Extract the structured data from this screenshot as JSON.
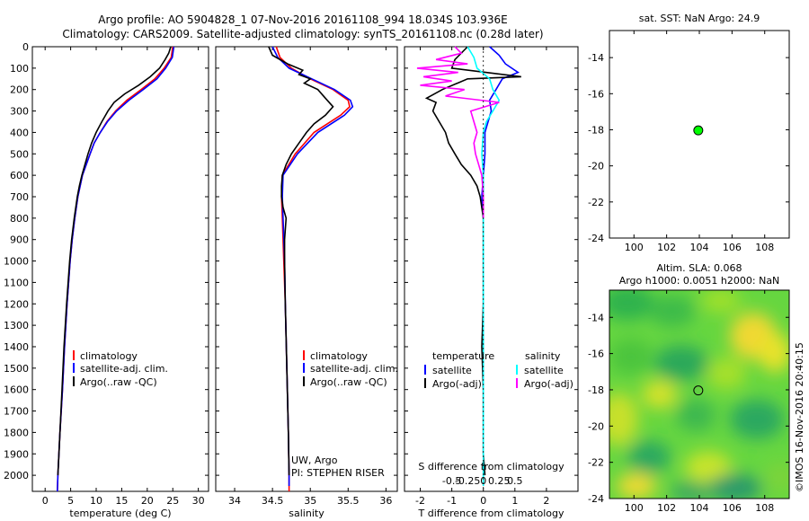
{
  "title": {
    "line1": "Argo profile: AO 5904828_1 07-Nov-2016 20161108_994 18.034S 103.936E",
    "line2": "Climatology: CARS2009. Satellite-adjusted climatology: synTS_20161108.nc (0.28d later)"
  },
  "side_label": "©IMOS 16-Nov-2016 20:40:15",
  "colors": {
    "climatology": "#ff0000",
    "satellite": "#0000ff",
    "argo": "#000000",
    "salinity_satellite": "#00ffff",
    "salinity_argo": "#ff00ff",
    "marker_green": "#00ff00"
  },
  "chart_data": [
    {
      "id": "temperature",
      "type": "line",
      "xlabel": "temperature (deg C)",
      "ylabel": "",
      "xlim": [
        -2.5,
        32
      ],
      "ylim": [
        2075,
        0
      ],
      "xticks": [
        0,
        5,
        10,
        15,
        20,
        25,
        30
      ],
      "xtick_labels": [
        "0",
        "5",
        "10",
        "15",
        "20",
        "25",
        "30"
      ],
      "yticks": [
        0,
        100,
        200,
        300,
        400,
        500,
        600,
        700,
        800,
        900,
        1000,
        1100,
        1200,
        1300,
        1400,
        1500,
        1600,
        1700,
        1800,
        1900,
        2000
      ],
      "ytick_labels": [
        "0",
        "100",
        "200",
        "300",
        "400",
        "500",
        "600",
        "700",
        "800",
        "900",
        "1000",
        "1100",
        "1200",
        "1300",
        "1400",
        "1500",
        "1600",
        "1700",
        "1800",
        "1900",
        "2000"
      ],
      "legend": [
        "climatology",
        "satellite-adj. clim.",
        "Argo(..raw -QC)"
      ],
      "legend_position": "lower-right",
      "series": [
        {
          "name": "climatology",
          "color": "#ff0000",
          "depth": [
            0,
            50,
            100,
            150,
            200,
            250,
            300,
            350,
            400,
            450,
            500,
            600,
            700,
            800,
            900,
            1000,
            1200,
            1400,
            1600,
            1800,
            2000,
            2075
          ],
          "values": [
            25.0,
            24.7,
            23.3,
            21.5,
            18.8,
            16.0,
            13.8,
            12.1,
            10.8,
            9.6,
            8.8,
            7.3,
            6.4,
            5.8,
            5.3,
            4.9,
            4.3,
            3.8,
            3.4,
            2.9,
            2.5,
            2.4
          ]
        },
        {
          "name": "satellite-adj. clim.",
          "color": "#0000ff",
          "depth": [
            0,
            50,
            100,
            150,
            200,
            250,
            300,
            350,
            400,
            450,
            500,
            600,
            700,
            800,
            900,
            1000,
            1200,
            1400,
            1600,
            1800,
            2000,
            2075
          ],
          "values": [
            25.2,
            24.9,
            23.6,
            21.9,
            19.2,
            16.4,
            14.0,
            12.2,
            10.8,
            9.6,
            8.8,
            7.3,
            6.4,
            5.8,
            5.3,
            4.9,
            4.3,
            3.8,
            3.4,
            2.9,
            2.5,
            2.4
          ]
        },
        {
          "name": "Argo(..raw -QC)",
          "color": "#000000",
          "depth": [
            0,
            30,
            60,
            100,
            140,
            180,
            220,
            260,
            300,
            350,
            400,
            450,
            500,
            550,
            600,
            650,
            700,
            800,
            900,
            1000,
            1200,
            1400,
            1600,
            1800,
            2000
          ],
          "values": [
            24.6,
            24.2,
            23.5,
            22.4,
            20.6,
            18.3,
            15.6,
            13.5,
            12.3,
            11.1,
            10.0,
            9.1,
            8.4,
            7.8,
            7.2,
            6.7,
            6.3,
            5.7,
            5.2,
            4.8,
            4.2,
            3.7,
            3.3,
            2.9,
            2.5
          ]
        }
      ]
    },
    {
      "id": "salinity",
      "type": "line",
      "xlabel": "salinity",
      "ylabel": "",
      "xlim": [
        33.75,
        36.15
      ],
      "ylim": [
        2075,
        0
      ],
      "xticks": [
        34,
        34.5,
        35,
        35.5,
        36
      ],
      "xtick_labels": [
        "34",
        "34.5",
        "35",
        "35.5",
        "36"
      ],
      "legend": [
        "climatology",
        "satellite-adj. clim.",
        "Argo(..raw -QC)"
      ],
      "legend_position": "lower-right",
      "annotation": [
        "UW, Argo",
        "PI: STEPHEN RISER"
      ],
      "series": [
        {
          "name": "climatology",
          "color": "#ff0000",
          "depth": [
            0,
            50,
            100,
            150,
            200,
            250,
            280,
            320,
            400,
            500,
            600,
            700,
            800,
            1000,
            1200,
            1500,
            1800,
            2000,
            2075
          ],
          "values": [
            34.55,
            34.6,
            34.75,
            35.0,
            35.3,
            35.5,
            35.52,
            35.4,
            35.05,
            34.8,
            34.63,
            34.62,
            34.63,
            34.65,
            34.67,
            34.69,
            34.71,
            34.72,
            34.72
          ]
        },
        {
          "name": "satellite-adj. clim.",
          "color": "#0000ff",
          "depth": [
            0,
            50,
            100,
            150,
            200,
            250,
            280,
            320,
            400,
            500,
            600,
            700,
            800,
            1000,
            1200,
            1500,
            1800,
            2000,
            2050
          ],
          "values": [
            34.5,
            34.57,
            34.72,
            35.02,
            35.32,
            35.53,
            35.56,
            35.45,
            35.1,
            34.83,
            34.64,
            34.63,
            34.64,
            34.66,
            34.67,
            34.69,
            34.71,
            34.72,
            34.72
          ]
        },
        {
          "name": "Argo(..raw -QC)",
          "color": "#000000",
          "depth": [
            0,
            40,
            80,
            110,
            130,
            150,
            170,
            200,
            240,
            280,
            320,
            360,
            400,
            450,
            500,
            550,
            600,
            650,
            700,
            750,
            800,
            900,
            1000,
            1200,
            1500,
            1800,
            2000
          ],
          "values": [
            34.45,
            34.5,
            34.7,
            34.9,
            34.85,
            35.0,
            34.92,
            35.1,
            35.2,
            35.3,
            35.2,
            35.05,
            34.95,
            34.85,
            34.75,
            34.68,
            34.63,
            34.62,
            34.62,
            34.64,
            34.68,
            34.66,
            34.66,
            34.67,
            34.69,
            34.71,
            34.72
          ]
        }
      ]
    },
    {
      "id": "difference",
      "type": "line",
      "xlabel_T": "T difference from climatology",
      "xlabel_S": "S difference from climatology",
      "xlim": [
        -2.5,
        3
      ],
      "ylim": [
        2075,
        0
      ],
      "xticks_T": [
        -2,
        -1,
        0,
        1,
        2
      ],
      "xtick_labels_T": [
        "-2",
        "-1",
        "0",
        "1",
        "2"
      ],
      "xticks_S": [
        -1,
        -0.5,
        0,
        0.5,
        1
      ],
      "xtick_labels_S": [
        "-0.5",
        "-0.25",
        "0",
        "0.25",
        "0.5"
      ],
      "legend_headers": [
        "temperature",
        "salinity"
      ],
      "legend": [
        "satellite",
        "Argo(-adj)",
        "satellite",
        "Argo(-adj)"
      ],
      "legend_position": "lower-center",
      "series": [
        {
          "name": "satellite",
          "group": "temperature",
          "color": "#0000ff",
          "depth": [
            0,
            40,
            80,
            120,
            150,
            200,
            250,
            300,
            400,
            500,
            600,
            700,
            800
          ],
          "values": [
            0.2,
            0.5,
            0.7,
            1.1,
            0.6,
            0.4,
            0.2,
            0.25,
            0.05,
            0.05,
            0.0,
            -0.05,
            0.0
          ]
        },
        {
          "name": "Argo(-adj)",
          "group": "temperature",
          "color": "#000000",
          "depth": [
            0,
            60,
            100,
            140,
            150,
            200,
            240,
            260,
            300,
            350,
            400,
            450,
            500,
            550,
            600,
            650,
            700,
            800,
            900,
            1000,
            1200,
            1400,
            1600,
            1800,
            1900,
            2000
          ],
          "values": [
            -0.5,
            -0.9,
            -1.0,
            1.2,
            -0.5,
            -1.3,
            -1.8,
            -1.5,
            -1.6,
            -1.4,
            -1.2,
            -1.1,
            -0.9,
            -0.7,
            -0.4,
            -0.2,
            -0.1,
            0.0,
            0.0,
            0.0,
            0.0,
            -0.05,
            0.0,
            0.0,
            0.0,
            0.05
          ]
        },
        {
          "name": "satellite",
          "group": "salinity",
          "color": "#00ffff",
          "depth": [
            0,
            50,
            100,
            150,
            200,
            250,
            300,
            350,
            400,
            500,
            600,
            700,
            800,
            1000,
            1200,
            1500,
            1800,
            2000,
            2050
          ],
          "values": [
            -0.5,
            -0.3,
            -0.2,
            0.2,
            0.3,
            0.5,
            0.3,
            0.1,
            0.0,
            -0.05,
            0.0,
            0.0,
            0.0,
            0.0,
            0.0,
            0.0,
            0.0,
            0.0,
            0.0
          ]
        },
        {
          "name": "Argo(-adj)",
          "group": "salinity",
          "color": "#ff00ff",
          "depth": [
            0,
            30,
            60,
            80,
            100,
            120,
            140,
            160,
            180,
            200,
            230,
            260,
            300,
            350,
            400,
            450,
            500,
            550,
            600,
            700,
            800
          ],
          "values": [
            -0.9,
            -0.7,
            -1.5,
            -0.5,
            -2.1,
            -0.8,
            -1.9,
            -1.0,
            -2.0,
            -0.6,
            -1.2,
            0.5,
            -0.4,
            -0.3,
            -0.2,
            -0.3,
            -0.25,
            -0.15,
            -0.05,
            0.0,
            0.0
          ]
        }
      ]
    },
    {
      "id": "sst_map",
      "type": "scatter",
      "title": "sat. SST: NaN Argo: 24.9",
      "xlim": [
        98.5,
        109.5
      ],
      "ylim": [
        -24,
        -12.5
      ],
      "xticks": [
        100,
        102,
        104,
        106,
        108
      ],
      "xtick_labels": [
        "100",
        "102",
        "104",
        "106",
        "108"
      ],
      "yticks": [
        -14,
        -16,
        -18,
        -20,
        -22,
        -24
      ],
      "ytick_labels": [
        "-14",
        "-16",
        "-18",
        "-20",
        "-22",
        "-24"
      ],
      "points": [
        {
          "x": 103.936,
          "y": -18.034
        }
      ]
    },
    {
      "id": "sla_map",
      "type": "heatmap",
      "title_line1": "Altim. SLA: 0.068",
      "title_line2": "Argo h1000: 0.0051 h2000: NaN",
      "xlim": [
        98.5,
        109.5
      ],
      "ylim": [
        -24,
        -12.5
      ],
      "xticks": [
        100,
        102,
        104,
        106,
        108
      ],
      "xtick_labels": [
        "100",
        "102",
        "104",
        "106",
        "108"
      ],
      "yticks": [
        -14,
        -16,
        -18,
        -20,
        -22,
        -24
      ],
      "ytick_labels": [
        "-14",
        "-16",
        "-18",
        "-20",
        "-22",
        "-24"
      ],
      "points": [
        {
          "x": 103.936,
          "y": -18.034
        }
      ]
    }
  ]
}
